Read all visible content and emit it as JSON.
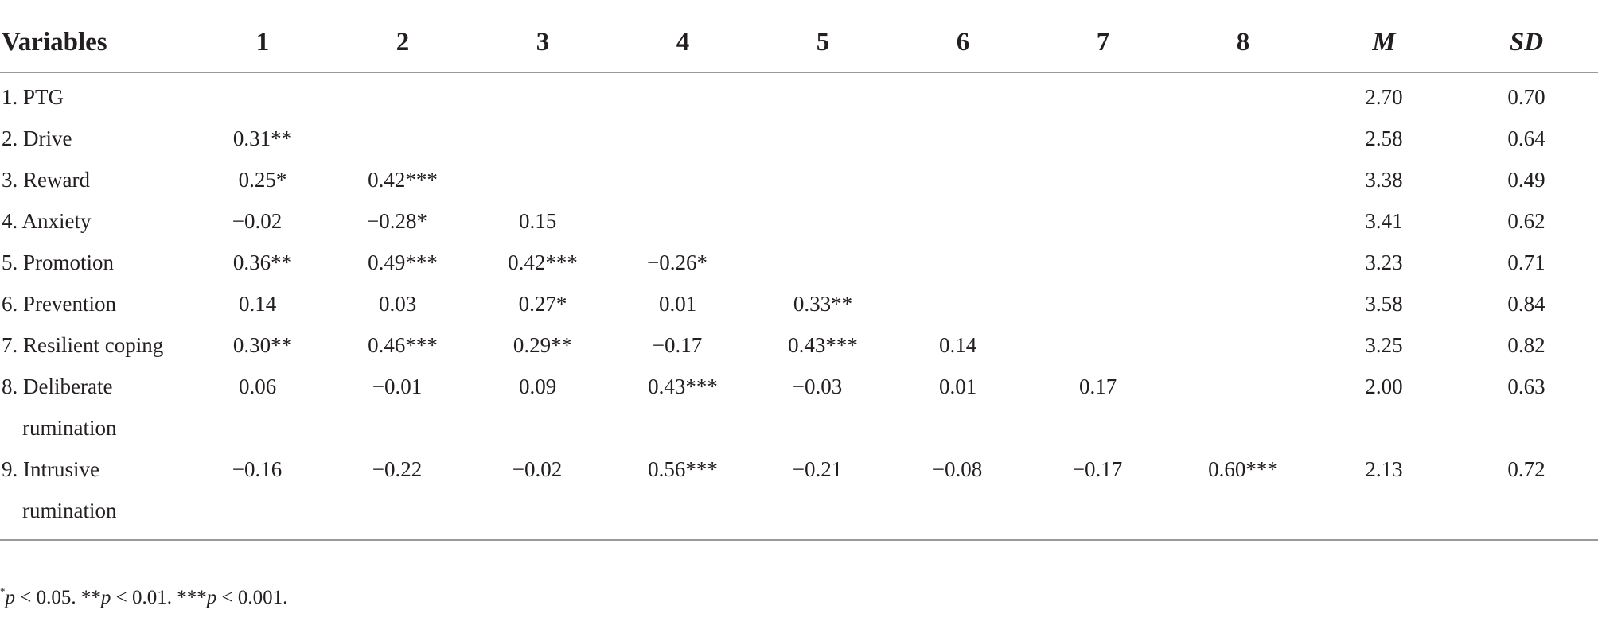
{
  "table": {
    "header": {
      "variables": "Variables",
      "cols": [
        "1",
        "2",
        "3",
        "4",
        "5",
        "6",
        "7",
        "8"
      ],
      "m": "M",
      "sd": "SD"
    },
    "rows": [
      {
        "label": "1. PTG",
        "cells": [
          "",
          "",
          "",
          "",
          "",
          "",
          "",
          ""
        ],
        "m": "2.70",
        "sd": "0.70"
      },
      {
        "label": "2. Drive",
        "cells": [
          "0.31**",
          "",
          "",
          "",
          "",
          "",
          "",
          ""
        ],
        "m": "2.58",
        "sd": "0.64"
      },
      {
        "label": "3. Reward",
        "cells": [
          "0.25*",
          "0.42***",
          "",
          "",
          "",
          "",
          "",
          ""
        ],
        "m": "3.38",
        "sd": "0.49"
      },
      {
        "label": "4. Anxiety",
        "cells": [
          "−0.02",
          "−0.28*",
          "0.15",
          "",
          "",
          "",
          "",
          ""
        ],
        "m": "3.41",
        "sd": "0.62"
      },
      {
        "label": "5. Promotion",
        "cells": [
          "0.36**",
          "0.49***",
          "0.42***",
          "−0.26*",
          "",
          "",
          "",
          ""
        ],
        "m": "3.23",
        "sd": "0.71"
      },
      {
        "label": "6. Prevention",
        "cells": [
          "0.14",
          "0.03",
          "0.27*",
          "0.01",
          "0.33**",
          "",
          "",
          ""
        ],
        "m": "3.58",
        "sd": "0.84"
      },
      {
        "label": "7. Resilient coping",
        "cells": [
          "0.30**",
          "0.46***",
          "0.29**",
          "−0.17",
          "0.43***",
          "0.14",
          "",
          ""
        ],
        "m": "3.25",
        "sd": "0.82"
      },
      {
        "label": "8. Deliberate",
        "label_cont": "rumination",
        "cells": [
          "0.06",
          "−0.01",
          "0.09",
          "0.43***",
          "−0.03",
          "0.01",
          "0.17",
          ""
        ],
        "m": "2.00",
        "sd": "0.63"
      },
      {
        "label": "9. Intrusive",
        "label_cont": "rumination",
        "cells": [
          "−0.16",
          "−0.22",
          "−0.02",
          "0.56***",
          "−0.21",
          "−0.08",
          "−0.17",
          "0.60***"
        ],
        "m": "2.13",
        "sd": "0.72"
      }
    ]
  },
  "footnote": {
    "star1": "*",
    "p1": "p",
    "t1": " < 0.05. **",
    "p2": "p",
    "t2": " < 0.01. ***",
    "p3": "p",
    "t3": " < 0.001."
  }
}
